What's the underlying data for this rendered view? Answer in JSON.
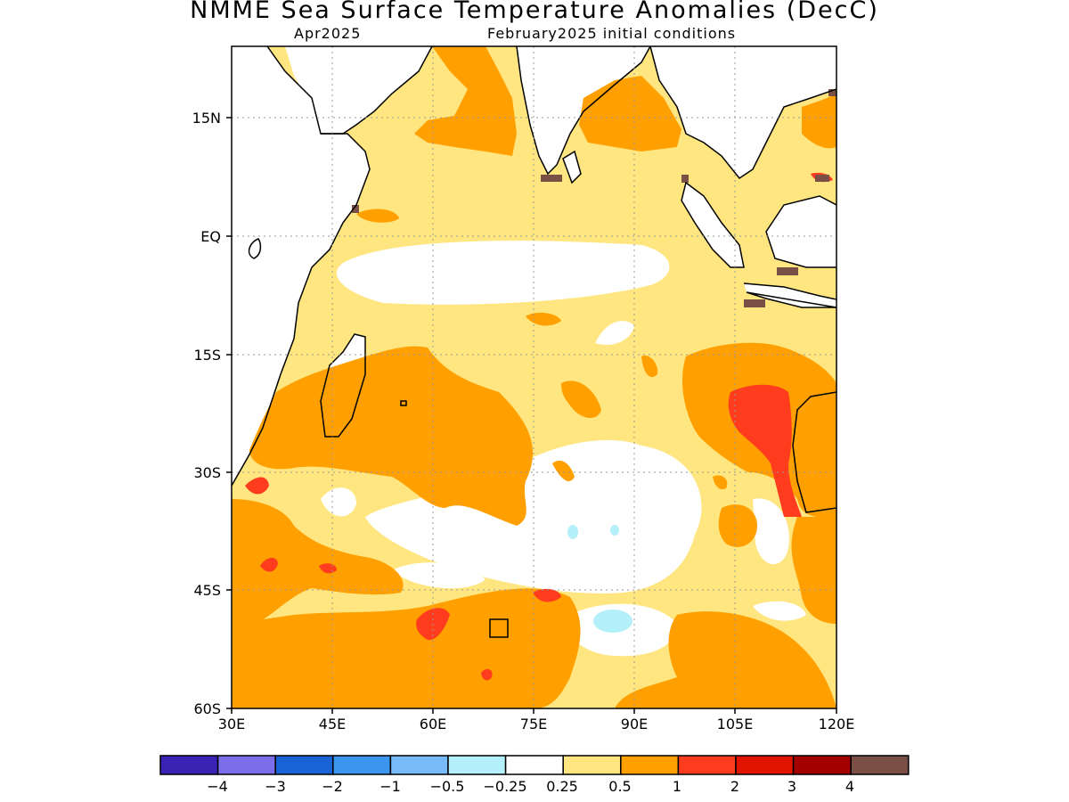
{
  "header": {
    "title": "NMME Sea Surface Temperature Anomalies (DecC)",
    "target_month": "Apr2025",
    "init_conditions": "February2025 initial conditions"
  },
  "map": {
    "lat_labels": [
      "15N",
      "EQ",
      "15S",
      "30S",
      "45S",
      "60S"
    ],
    "lon_labels": [
      "30E",
      "45E",
      "60E",
      "75E",
      "90E",
      "105E",
      "120E"
    ]
  },
  "colorbar": {
    "colors": [
      "#3a22b4",
      "#7b6ee8",
      "#1864d6",
      "#3c96f0",
      "#78b9f8",
      "#b4f0fa",
      "#ffffff",
      "#ffe680",
      "#ffa000",
      "#ff3c1e",
      "#e11400",
      "#a50000",
      "#7a5046"
    ],
    "labels": [
      "−4",
      "−3",
      "−2",
      "−1",
      "−0.5",
      "−0.25",
      "0.25",
      "0.5",
      "1",
      "2",
      "3",
      "4"
    ]
  },
  "legend_colors": {
    "land": "#ffffff",
    "weak_positive": "#ffe680",
    "moderate_positive": "#ffa000",
    "strong_positive": "#ff3c1e",
    "very_strong_positive": "#e11400",
    "negative_small": "#b4f0fa",
    "masked": "#7a5046"
  }
}
